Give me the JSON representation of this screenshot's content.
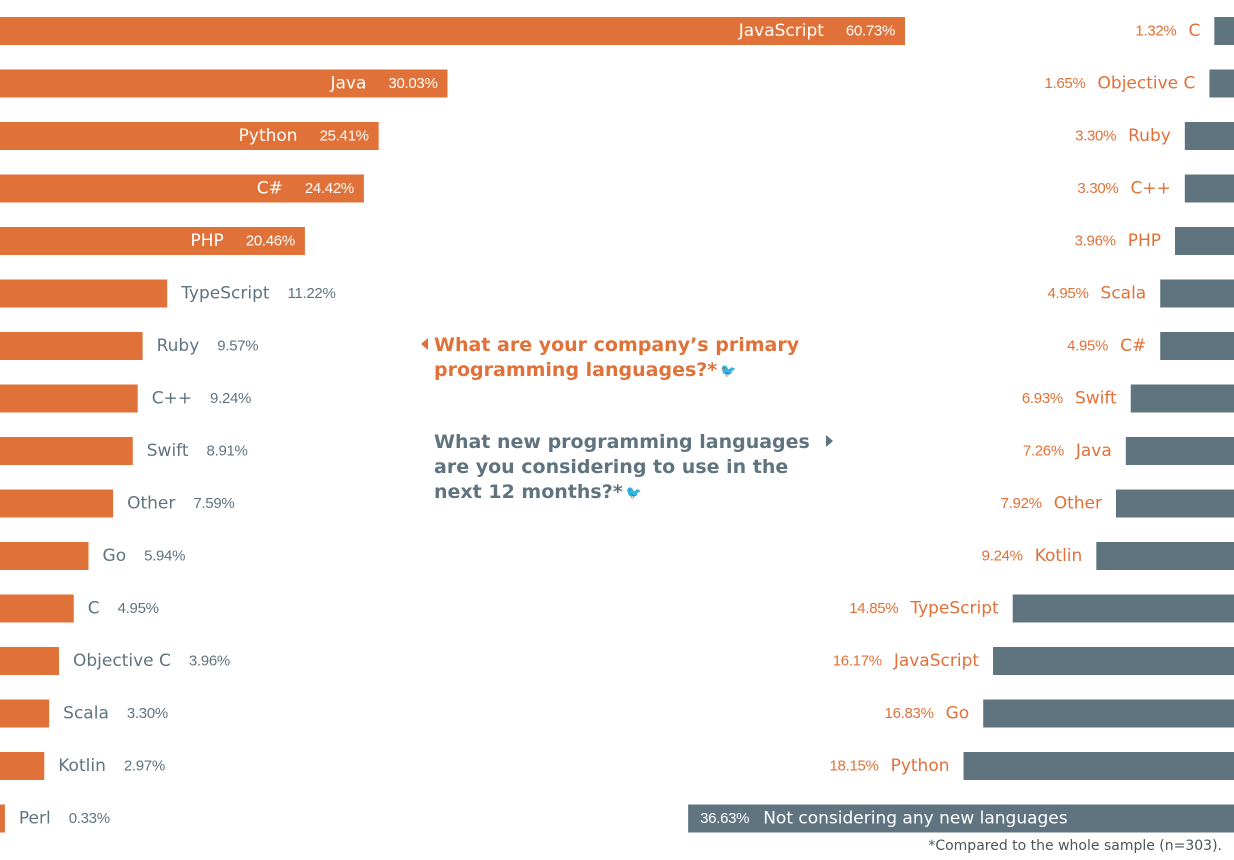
{
  "colors": {
    "orange": "#e07138",
    "slate": "#60747f",
    "white": "#ffffff"
  },
  "questions": {
    "primary": "What are your company’s primary programming languages?*",
    "new": "What new programming languages are you considering to use in the next 12 months?*",
    "icon": "twitter-bird-icon"
  },
  "footnote": "*Compared to the whole sample (n=303).",
  "chart_data": [
    {
      "type": "bar",
      "orientation": "horizontal",
      "anchor": "left",
      "color": "#e07138",
      "categories": [
        "JavaScript",
        "Java",
        "Python",
        "C#",
        "PHP",
        "TypeScript",
        "Ruby",
        "C++",
        "Swift",
        "Other",
        "Go",
        "C",
        "Objective C",
        "Scala",
        "Kotlin",
        "Perl"
      ],
      "values": [
        60.73,
        30.03,
        25.41,
        24.42,
        20.46,
        11.22,
        9.57,
        9.24,
        8.91,
        7.59,
        5.94,
        4.95,
        3.96,
        3.3,
        2.97,
        0.33
      ],
      "value_labels": [
        "60.73%",
        "30.03%",
        "25.41%",
        "24.42%",
        "20.46%",
        "11.22%",
        "9.57%",
        "9.24%",
        "8.91%",
        "7.59%",
        "5.94%",
        "4.95%",
        "3.96%",
        "3.30%",
        "2.97%",
        "0.33%"
      ]
    },
    {
      "type": "bar",
      "orientation": "horizontal",
      "anchor": "right",
      "color": "#60747f",
      "categories": [
        "C",
        "Objective C",
        "Ruby",
        "C++",
        "PHP",
        "Scala",
        "C#",
        "Swift",
        "Java",
        "Other",
        "Kotlin",
        "TypeScript",
        "JavaScript",
        "Go",
        "Python",
        "Not considering any new languages"
      ],
      "values": [
        1.32,
        1.65,
        3.3,
        3.3,
        3.96,
        4.95,
        4.95,
        6.93,
        7.26,
        7.92,
        9.24,
        14.85,
        16.17,
        16.83,
        18.15,
        36.63
      ],
      "value_labels": [
        "1.32%",
        "1.65%",
        "3.30%",
        "3.30%",
        "3.96%",
        "4.95%",
        "4.95%",
        "6.93%",
        "7.26%",
        "7.92%",
        "9.24%",
        "14.85%",
        "16.17%",
        "16.83%",
        "18.15%",
        "36.63%"
      ]
    }
  ]
}
